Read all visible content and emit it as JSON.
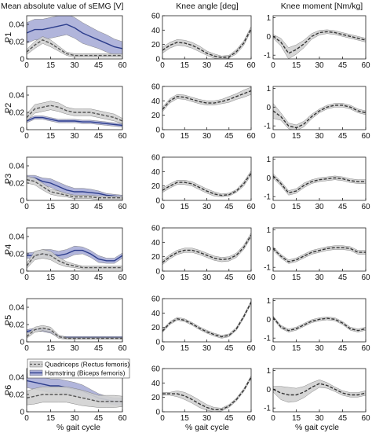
{
  "column_titles": [
    "Mean absolute value of sEMG [V]",
    "Knee angle [deg]",
    "Knee moment [Nm/kg]"
  ],
  "participants": [
    "P1",
    "P2",
    "P3",
    "P4",
    "P5",
    "P6"
  ],
  "xlabel": "% gait cycle",
  "legend": {
    "quadriceps": "Quadriceps (Rectus femoris)",
    "hamstring": "Hamstring (Biceps femoris)"
  },
  "colors": {
    "quadriceps_band": "#d2d2d2",
    "quadriceps_line": "#555555",
    "hamstring_band": "#a9add8",
    "hamstring_line": "#2c3d8c"
  },
  "chart_data": [
    {
      "type": "line",
      "panel": "sEMG",
      "xlim": [
        0,
        60
      ],
      "xticks": [
        "0",
        "15",
        "30",
        "45",
        "60"
      ],
      "ylim": [
        0,
        0.05
      ],
      "yticks": [
        "0",
        "0.02",
        "0.04"
      ],
      "x": [
        0,
        5,
        10,
        15,
        20,
        25,
        30,
        35,
        40,
        45,
        50,
        55,
        60
      ],
      "participants": [
        {
          "name": "P1",
          "quadriceps": {
            "mean": [
              0.008,
              0.016,
              0.022,
              0.018,
              0.012,
              0.006,
              0.004,
              0.004,
              0.004,
              0.004,
              0.004,
              0.004,
              0.004
            ],
            "sd": [
              0.003,
              0.004,
              0.004,
              0.004,
              0.003,
              0.002,
              0.002,
              0.002,
              0.002,
              0.002,
              0.002,
              0.002,
              0.002
            ]
          },
          "hamstring": {
            "mean": [
              0.03,
              0.034,
              0.034,
              0.036,
              0.038,
              0.04,
              0.036,
              0.03,
              0.026,
              0.022,
              0.018,
              0.014,
              0.012
            ],
            "sd": [
              0.012,
              0.012,
              0.012,
              0.012,
              0.012,
              0.012,
              0.012,
              0.012,
              0.011,
              0.01,
              0.01,
              0.009,
              0.008
            ]
          }
        },
        {
          "name": "P2",
          "quadriceps": {
            "mean": [
              0.014,
              0.024,
              0.026,
              0.028,
              0.026,
              0.022,
              0.02,
              0.02,
              0.02,
              0.018,
              0.016,
              0.014,
              0.01
            ],
            "sd": [
              0.004,
              0.005,
              0.005,
              0.005,
              0.005,
              0.004,
              0.004,
              0.004,
              0.004,
              0.004,
              0.004,
              0.004,
              0.003
            ]
          },
          "hamstring": {
            "mean": [
              0.01,
              0.014,
              0.014,
              0.012,
              0.01,
              0.01,
              0.01,
              0.009,
              0.009,
              0.008,
              0.007,
              0.006,
              0.005
            ],
            "sd": [
              0.002,
              0.002,
              0.002,
              0.002,
              0.002,
              0.002,
              0.002,
              0.002,
              0.002,
              0.002,
              0.002,
              0.002,
              0.002
            ]
          }
        },
        {
          "name": "P3",
          "quadriceps": {
            "mean": [
              0.024,
              0.022,
              0.016,
              0.01,
              0.008,
              0.006,
              0.004,
              0.004,
              0.004,
              0.003,
              0.003,
              0.003,
              0.003
            ],
            "sd": [
              0.004,
              0.004,
              0.004,
              0.003,
              0.003,
              0.002,
              0.002,
              0.002,
              0.002,
              0.002,
              0.002,
              0.002,
              0.002
            ]
          },
          "hamstring": {
            "mean": [
              0.026,
              0.026,
              0.022,
              0.02,
              0.016,
              0.012,
              0.01,
              0.01,
              0.009,
              0.008,
              0.006,
              0.005,
              0.004
            ],
            "sd": [
              0.003,
              0.003,
              0.004,
              0.005,
              0.005,
              0.005,
              0.004,
              0.004,
              0.004,
              0.003,
              0.002,
              0.002,
              0.002
            ]
          }
        },
        {
          "name": "P4",
          "quadriceps": {
            "mean": [
              0.006,
              0.018,
              0.02,
              0.018,
              0.012,
              0.008,
              0.006,
              0.004,
              0.004,
              0.004,
              0.004,
              0.004,
              0.004
            ],
            "sd": [
              0.003,
              0.005,
              0.005,
              0.005,
              0.004,
              0.003,
              0.002,
              0.002,
              0.002,
              0.002,
              0.002,
              0.002,
              0.002
            ]
          },
          "hamstring": {
            "mean": [
              0.018,
              0.018,
              0.02,
              0.02,
              0.018,
              0.02,
              0.024,
              0.024,
              0.02,
              0.014,
              0.012,
              0.012,
              0.018
            ],
            "sd": [
              0.003,
              0.004,
              0.005,
              0.005,
              0.005,
              0.005,
              0.005,
              0.004,
              0.004,
              0.004,
              0.003,
              0.003,
              0.003
            ]
          }
        },
        {
          "name": "P5",
          "quadriceps": {
            "mean": [
              0.006,
              0.014,
              0.016,
              0.014,
              0.006,
              0.004,
              0.004,
              0.004,
              0.004,
              0.004,
              0.004,
              0.004,
              0.004
            ],
            "sd": [
              0.002,
              0.003,
              0.003,
              0.003,
              0.002,
              0.001,
              0.001,
              0.001,
              0.001,
              0.001,
              0.001,
              0.001,
              0.001
            ]
          },
          "hamstring": {
            "mean": [
              0.012,
              0.014,
              0.014,
              0.012,
              0.006,
              0.005,
              0.005,
              0.005,
              0.005,
              0.005,
              0.005,
              0.005,
              0.005
            ],
            "sd": [
              0.002,
              0.002,
              0.002,
              0.002,
              0.001,
              0.001,
              0.001,
              0.001,
              0.001,
              0.001,
              0.001,
              0.001,
              0.001
            ]
          }
        },
        {
          "name": "P6",
          "quadriceps": {
            "mean": [
              0.016,
              0.018,
              0.02,
              0.02,
              0.02,
              0.02,
              0.018,
              0.016,
              0.014,
              0.012,
              0.012,
              0.012,
              0.012
            ],
            "sd": [
              0.008,
              0.009,
              0.009,
              0.009,
              0.009,
              0.009,
              0.009,
              0.009,
              0.008,
              0.007,
              0.007,
              0.007,
              0.006
            ]
          },
          "hamstring": {
            "mean": [
              0.036,
              0.034,
              0.032,
              0.03,
              0.03,
              0.028,
              0.026,
              0.024,
              0.02,
              0.016,
              0.014,
              0.012,
              0.012
            ],
            "sd": [
              0.008,
              0.008,
              0.008,
              0.008,
              0.008,
              0.008,
              0.008,
              0.007,
              0.006,
              0.005,
              0.004,
              0.004,
              0.004
            ]
          }
        }
      ]
    },
    {
      "type": "line",
      "panel": "Knee angle",
      "xlim": [
        0,
        60
      ],
      "xticks": [
        "0",
        "15",
        "30",
        "45",
        "60"
      ],
      "ylim": [
        0,
        60
      ],
      "yticks": [
        "0",
        "20",
        "40",
        "60"
      ],
      "x": [
        0,
        5,
        10,
        15,
        20,
        25,
        30,
        35,
        40,
        45,
        50,
        55,
        60
      ],
      "participants": [
        {
          "name": "P1",
          "mean": [
            12,
            19,
            23,
            22,
            19,
            14,
            8,
            4,
            2,
            3,
            10,
            22,
            42
          ],
          "sd": [
            4,
            4,
            4,
            4,
            4,
            4,
            3,
            3,
            2,
            2,
            3,
            3,
            3
          ]
        },
        {
          "name": "P2",
          "mean": [
            28,
            40,
            46,
            45,
            42,
            39,
            37,
            37,
            39,
            42,
            46,
            50,
            54
          ],
          "sd": [
            3,
            3,
            3,
            3,
            3,
            3,
            3,
            3,
            3,
            4,
            4,
            5,
            5
          ]
        },
        {
          "name": "P3",
          "mean": [
            14,
            20,
            25,
            25,
            23,
            18,
            13,
            9,
            7,
            8,
            13,
            23,
            38
          ],
          "sd": [
            3,
            3,
            3,
            3,
            3,
            3,
            3,
            3,
            2,
            2,
            2,
            3,
            3
          ]
        },
        {
          "name": "P4",
          "mean": [
            12,
            20,
            26,
            29,
            29,
            26,
            22,
            18,
            16,
            17,
            22,
            33,
            50
          ],
          "sd": [
            3,
            3,
            3,
            3,
            3,
            3,
            3,
            3,
            3,
            3,
            3,
            3,
            3
          ]
        },
        {
          "name": "P5",
          "mean": [
            15,
            26,
            32,
            30,
            25,
            19,
            14,
            10,
            7,
            9,
            18,
            35,
            55
          ],
          "sd": [
            2,
            2,
            2,
            2,
            2,
            2,
            2,
            2,
            2,
            2,
            2,
            2,
            2
          ]
        },
        {
          "name": "P6",
          "mean": [
            25,
            25,
            25,
            22,
            17,
            11,
            6,
            3,
            3,
            8,
            17,
            30,
            48
          ],
          "sd": [
            2,
            2,
            4,
            5,
            5,
            5,
            4,
            3,
            2,
            2,
            2,
            2,
            2
          ]
        }
      ]
    },
    {
      "type": "line",
      "panel": "Knee moment",
      "xlim": [
        0,
        60
      ],
      "xticks": [
        "0",
        "15",
        "30",
        "45",
        "60"
      ],
      "ylim": [
        -1.2,
        1.1
      ],
      "yticks": [
        "-1",
        "0",
        "1"
      ],
      "x": [
        0,
        5,
        10,
        15,
        20,
        25,
        30,
        35,
        40,
        45,
        50,
        55,
        60
      ],
      "participants": [
        {
          "name": "P1",
          "mean": [
            0.0,
            -0.3,
            -0.9,
            -0.7,
            -0.4,
            0.0,
            0.2,
            0.25,
            0.2,
            0.1,
            0.0,
            -0.1,
            -0.2
          ],
          "sd": [
            0.1,
            0.2,
            0.3,
            0.25,
            0.2,
            0.15,
            0.12,
            0.1,
            0.1,
            0.1,
            0.1,
            0.1,
            0.1
          ]
        },
        {
          "name": "P2",
          "mean": [
            -0.2,
            -0.5,
            -1.0,
            -1.1,
            -0.9,
            -0.5,
            -0.2,
            0.0,
            0.1,
            0.1,
            0.0,
            -0.2,
            -0.3
          ],
          "sd": [
            0.4,
            0.2,
            0.15,
            0.15,
            0.15,
            0.12,
            0.1,
            0.1,
            0.1,
            0.1,
            0.1,
            0.1,
            0.1
          ]
        },
        {
          "name": "P3",
          "mean": [
            0.1,
            -0.3,
            -0.8,
            -0.7,
            -0.4,
            -0.2,
            -0.1,
            -0.05,
            0.0,
            -0.05,
            -0.15,
            -0.2,
            -0.2
          ],
          "sd": [
            0.12,
            0.12,
            0.12,
            0.12,
            0.12,
            0.1,
            0.1,
            0.1,
            0.1,
            0.1,
            0.1,
            0.1,
            0.1
          ]
        },
        {
          "name": "P4",
          "mean": [
            0.0,
            -0.4,
            -0.7,
            -0.6,
            -0.4,
            -0.2,
            -0.1,
            0.0,
            0.05,
            0.05,
            0.0,
            -0.2,
            -0.2
          ],
          "sd": [
            0.1,
            0.1,
            0.1,
            0.1,
            0.1,
            0.1,
            0.1,
            0.1,
            0.1,
            0.1,
            0.1,
            0.1,
            0.1
          ]
        },
        {
          "name": "P5",
          "mean": [
            0.1,
            -0.4,
            -0.6,
            -0.5,
            -0.3,
            -0.1,
            0.0,
            0.05,
            0.0,
            -0.2,
            -0.5,
            -0.6,
            -0.5
          ],
          "sd": [
            0.08,
            0.08,
            0.08,
            0.08,
            0.08,
            0.08,
            0.08,
            0.08,
            0.08,
            0.08,
            0.08,
            0.08,
            0.08
          ]
        },
        {
          "name": "P6",
          "mean": [
            0.0,
            -0.2,
            -0.3,
            -0.3,
            -0.15,
            0.1,
            0.3,
            0.2,
            0.0,
            -0.2,
            -0.3,
            -0.3,
            -0.2
          ],
          "sd": [
            0.15,
            0.35,
            0.4,
            0.35,
            0.3,
            0.25,
            0.2,
            0.15,
            0.12,
            0.12,
            0.12,
            0.12,
            0.12
          ]
        }
      ]
    }
  ]
}
